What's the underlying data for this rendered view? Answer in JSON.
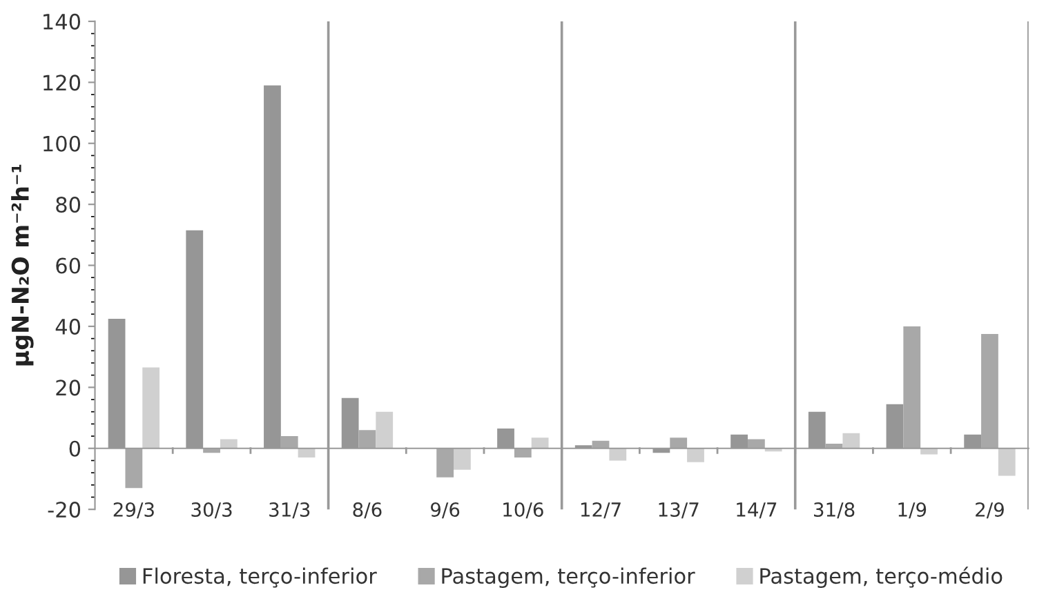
{
  "chart_data": {
    "type": "bar",
    "ylabel": "µgN-N₂O m⁻²h⁻¹",
    "categories": [
      "29/3",
      "30/3",
      "31/3",
      "8/6",
      "9/6",
      "10/6",
      "12/7",
      "13/7",
      "14/7",
      "31/8",
      "1/9",
      "2/9"
    ],
    "series": [
      {
        "name": "Floresta, terço-inferior",
        "color": "#969696",
        "values": [
          42.5,
          71.5,
          119,
          16.5,
          0,
          6.5,
          1,
          -1.5,
          4.5,
          12,
          14.5,
          4.5
        ]
      },
      {
        "name": "Pastagem, terço-inferior",
        "color": "#a8a8a8",
        "values": [
          -13,
          -1.5,
          4,
          6,
          -9.5,
          -3,
          2.5,
          3.5,
          3,
          1.5,
          40,
          37.5
        ]
      },
      {
        "name": "Pastagem, terço-médio",
        "color": "#d0d0d0",
        "values": [
          26.5,
          3,
          -3,
          12,
          -7,
          3.5,
          -4,
          -4.5,
          -1,
          5,
          -2,
          -9
        ]
      }
    ],
    "ylim": [
      -20,
      140
    ],
    "yticks": [
      -20,
      0,
      20,
      40,
      60,
      80,
      100,
      120,
      140
    ],
    "grid": false,
    "legend": "bottom"
  }
}
